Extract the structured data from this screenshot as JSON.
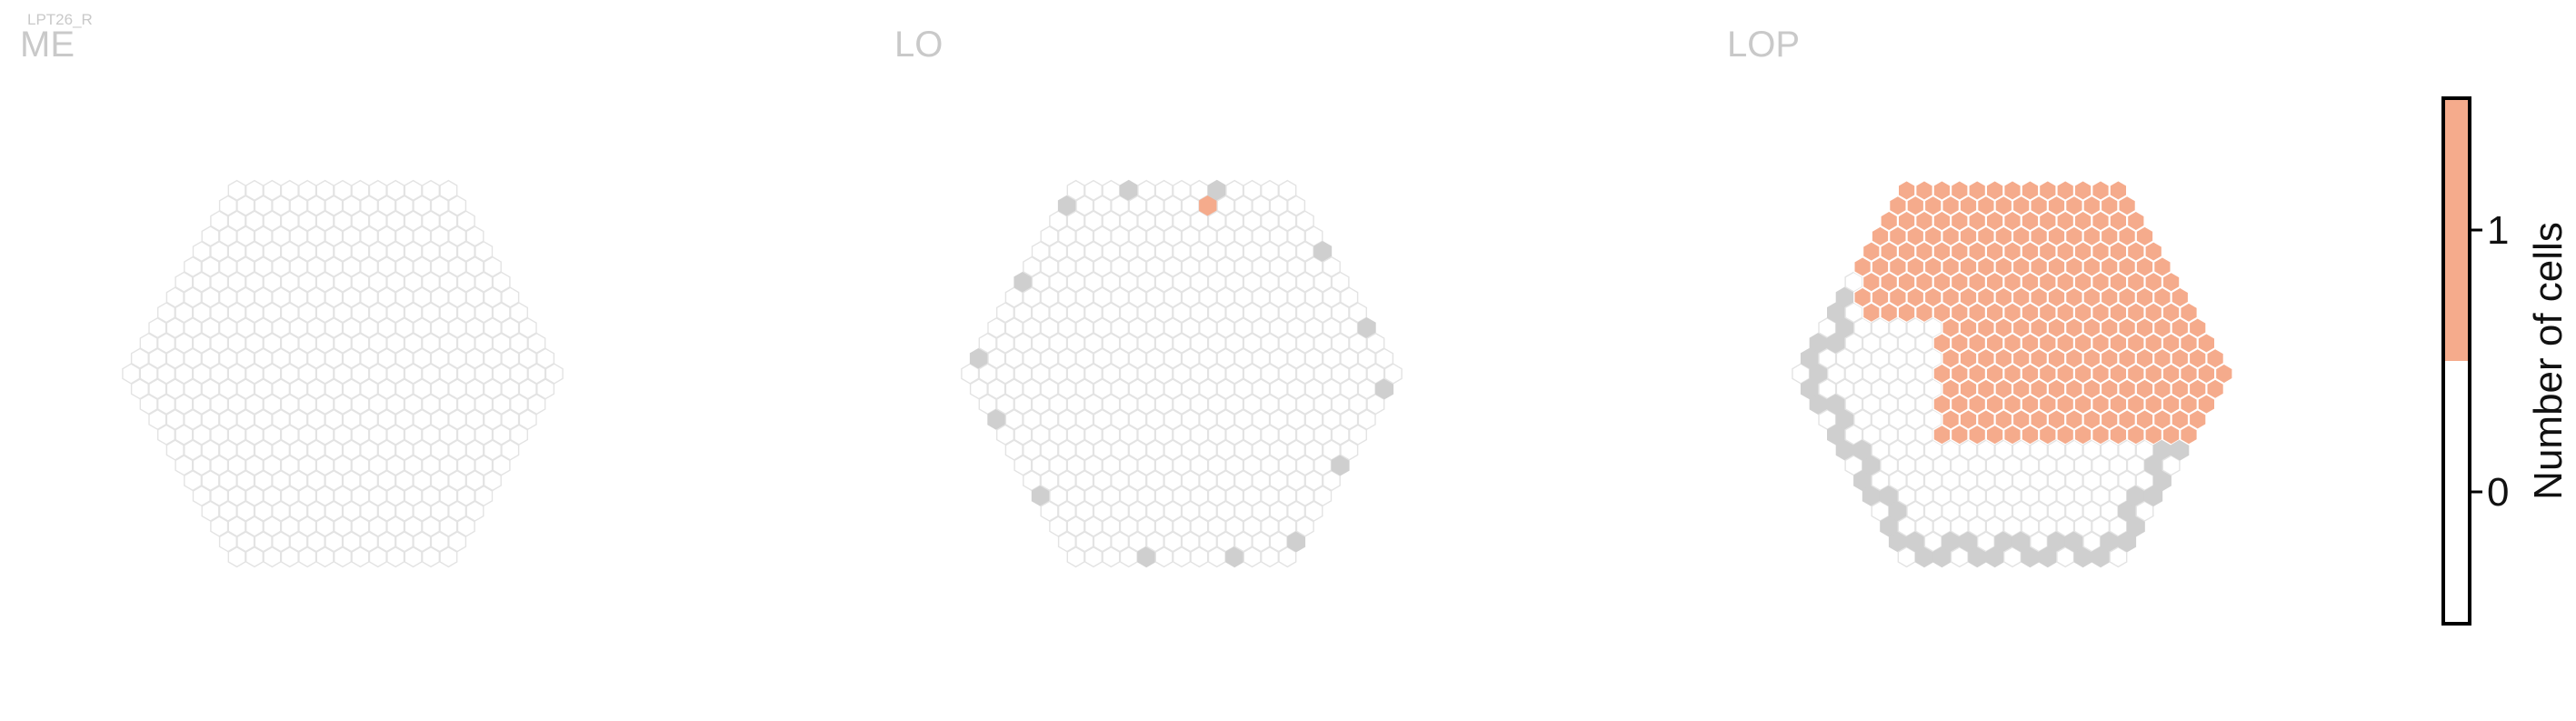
{
  "figure": {
    "small_title": "LPT26_R",
    "colors": {
      "empty_fill": "#ffffff",
      "empty_stroke": "#e3e3e3",
      "edge_fill": "#cfcfcf",
      "cell_fill": "#f5ab8c"
    }
  },
  "chart_data": {
    "type": "heatmap",
    "description": "Hexagonal column maps per neuropil; value = number of cells per column",
    "panels": [
      {
        "name": "ME",
        "cells": []
      },
      {
        "name": "LO",
        "cells": [
          {
            "ring": [
              7,
              11
            ],
            "count": 1
          }
        ]
      },
      {
        "name": "LOP",
        "cells": [
          {
            "region": "upper-right quadrant",
            "count": 1
          }
        ]
      }
    ],
    "colorbar": {
      "label": "Number of cells",
      "ticks": [
        "0",
        "1"
      ],
      "range": [
        -0.5,
        1.5
      ],
      "colors": [
        {
          "from": -0.5,
          "to": 0.5,
          "color": "#ffffff"
        },
        {
          "from": 0.5,
          "to": 1.5,
          "color": "#f5ab8c"
        }
      ]
    }
  }
}
